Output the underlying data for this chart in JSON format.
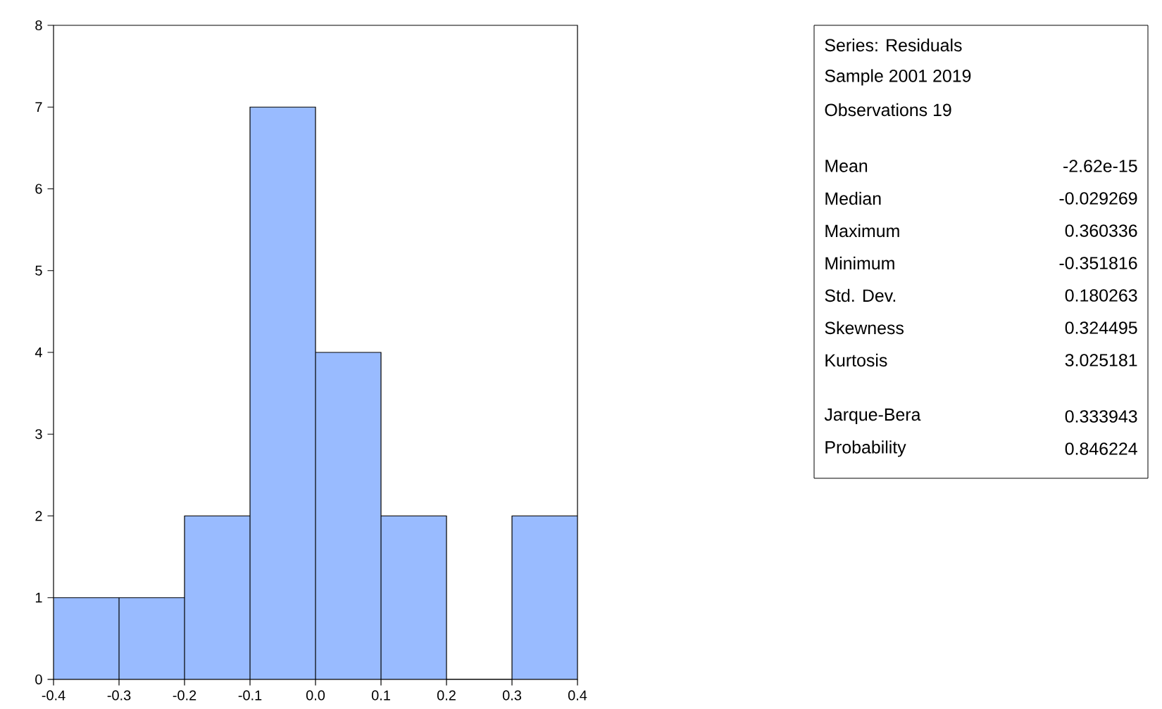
{
  "chart_data": {
    "type": "histogram",
    "bins": [
      -0.4,
      -0.3,
      -0.2,
      -0.1,
      0.0,
      0.1,
      0.2,
      0.3,
      0.4
    ],
    "values": [
      1,
      1,
      2,
      7,
      4,
      2,
      0,
      2
    ],
    "color": "#99bbff",
    "xlim": [
      -0.4,
      0.4
    ],
    "xticks": [
      -0.4,
      -0.3,
      -0.2,
      -0.1,
      {
        "value": 0,
        "label": "0.0"
      },
      0.1,
      0.2,
      0.3,
      0.4
    ],
    "ylim": [
      0,
      8
    ],
    "yticks": [
      0,
      1,
      2,
      3,
      4,
      5,
      6,
      7,
      8
    ],
    "grid": false,
    "annotations": [
      "Series: Residuals",
      "Sample 2001 2019",
      "Observations 19",
      "Mean",
      "-2.62e-15",
      "Median",
      "-0.029269",
      "Maximum",
      "0.360336",
      "Minimum",
      "-0.351816",
      "Std. Dev.",
      "0.180263",
      "Skewness",
      "0.324495",
      "Kurtosis",
      "3.025181",
      "Jarque-Bera",
      "0.333943",
      "Probability",
      "0.846224"
    ]
  }
}
